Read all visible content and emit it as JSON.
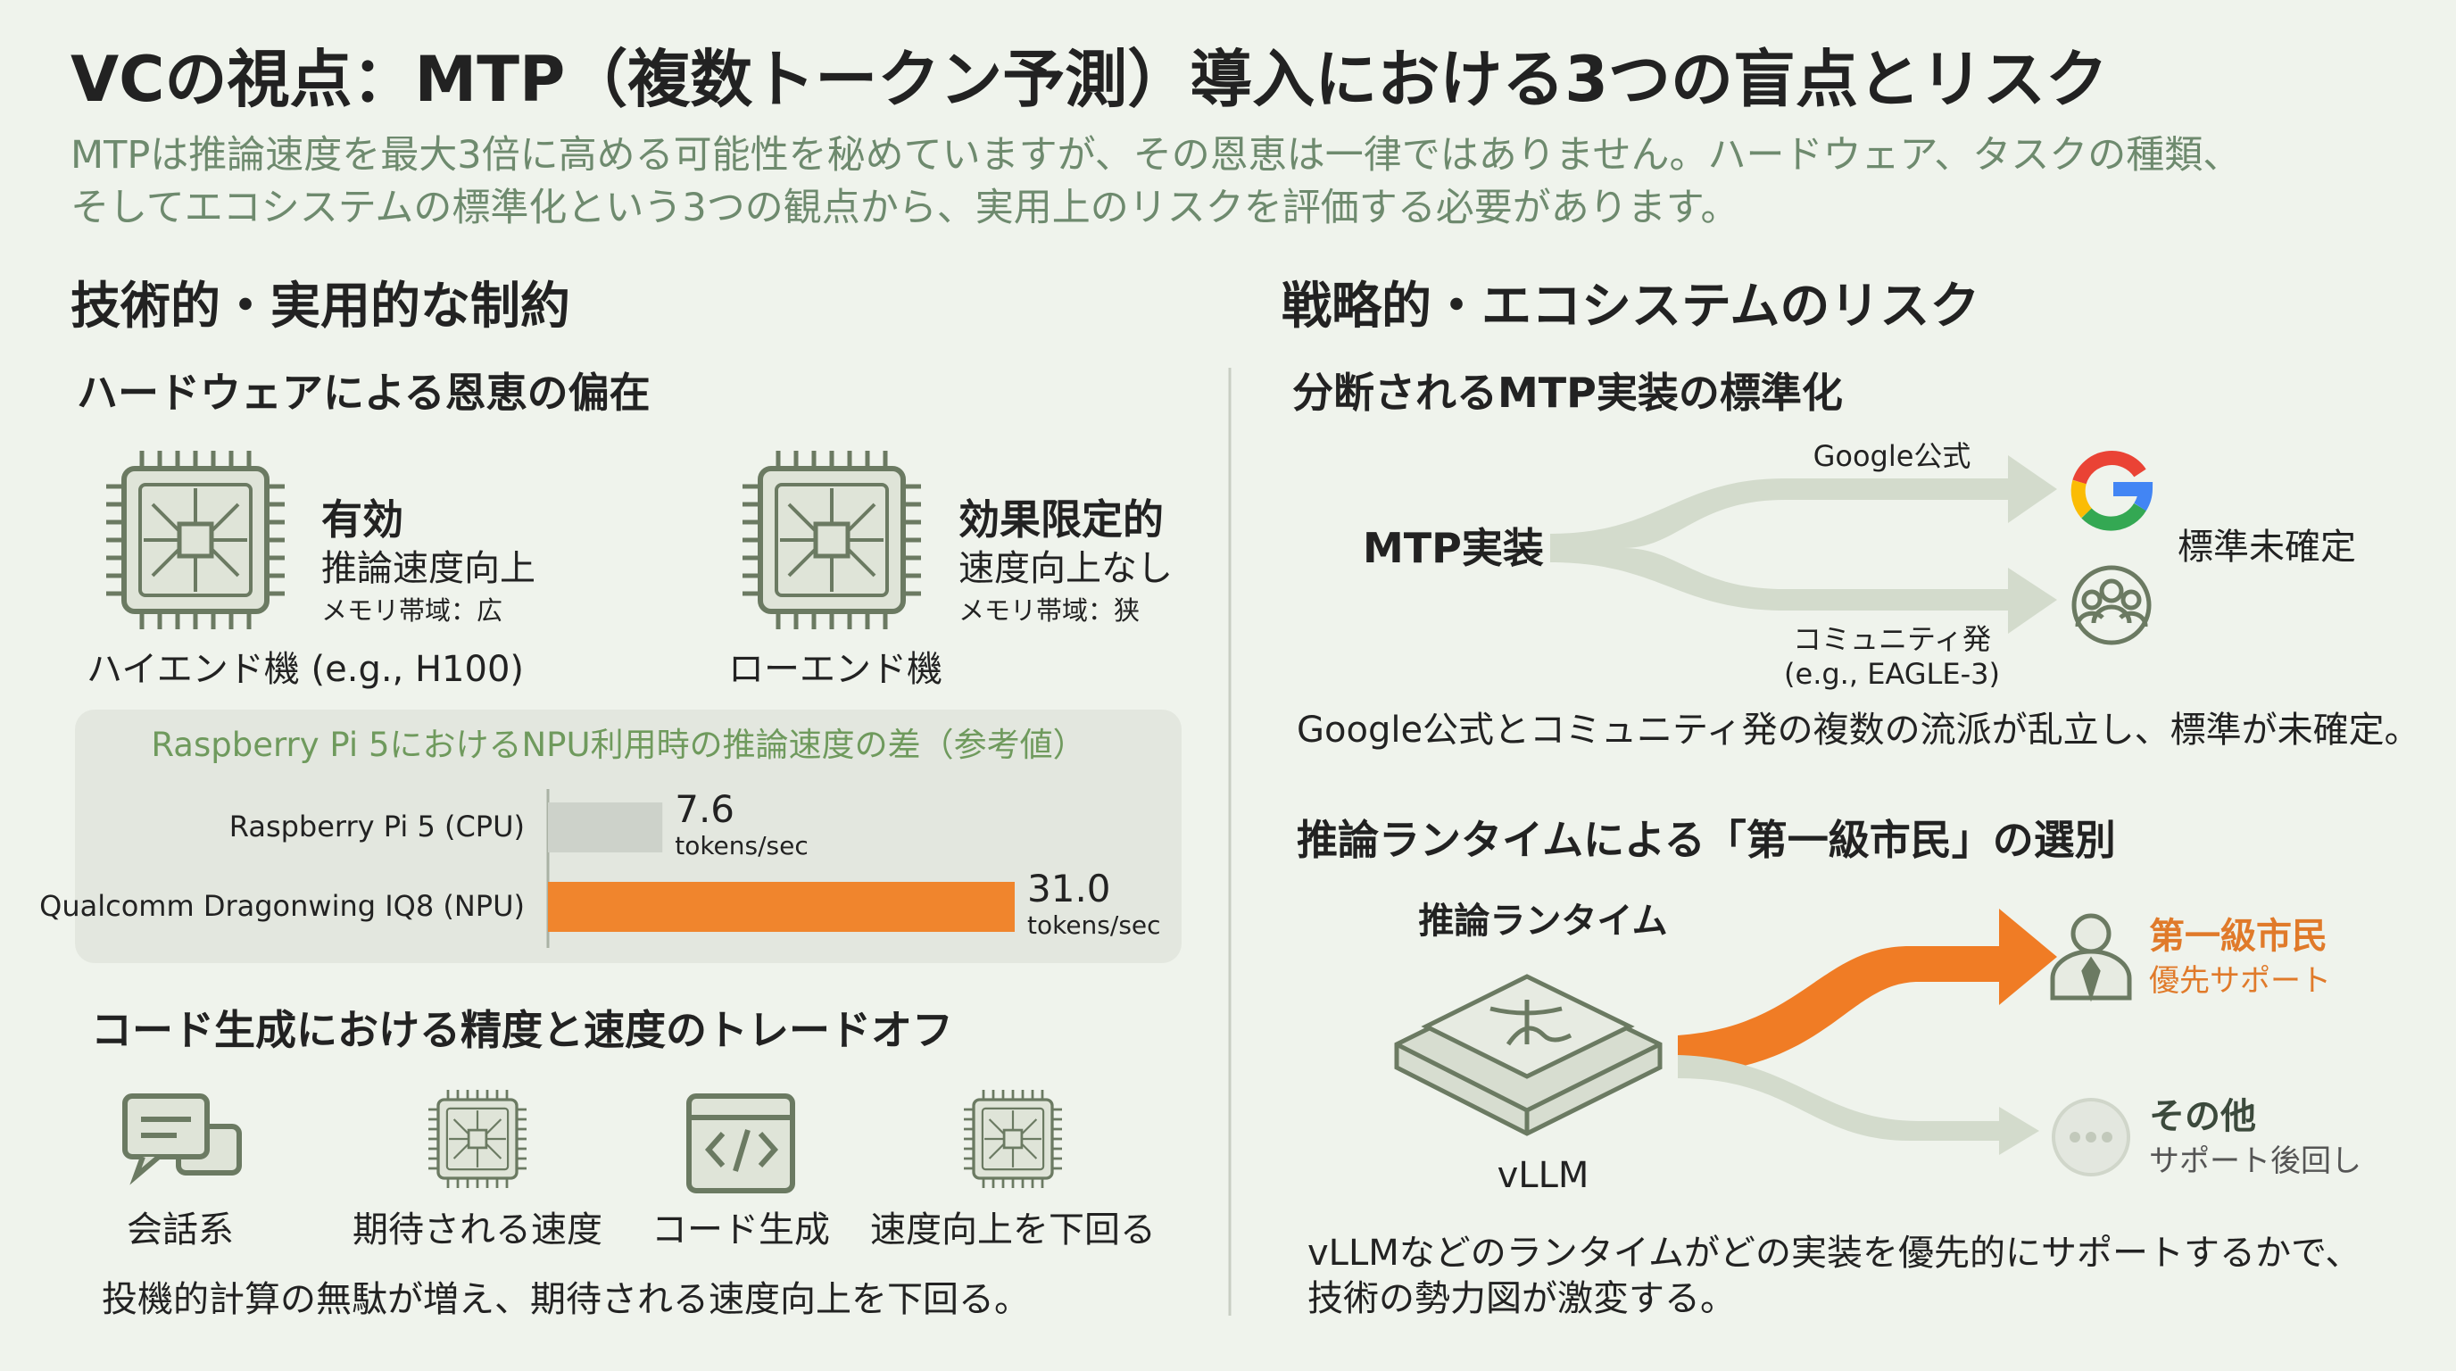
{
  "header": {
    "title": "VCの視点：MTP（複数トークン予測）導入における3つの盲点とリスク",
    "subtitle": [
      "MTPは推論速度を最大3倍に高める可能性を秘めていますが、その恩恵は一律ではありません。ハードウェア、タスクの種類、",
      "そしてエコシステムの標準化という3つの観点から、実用上のリスクを評価する必要があります。"
    ]
  },
  "left": {
    "heading": "技術的・実用的な制約",
    "hardware": {
      "heading": "ハードウェアによる恩恵の偏在",
      "high_end": {
        "status": "有効",
        "line1": "推論速度向上",
        "line2": "メモリ帯域：広",
        "label": "ハイエンド機 (e.g., H100)"
      },
      "low_end": {
        "status": "効果限定的",
        "line1": "速度向上なし",
        "line2": "メモリ帯域：狭",
        "label": "ローエンド機"
      }
    },
    "bar_chart": {
      "title": "Raspberry Pi 5におけるNPU利用時の推論速度の差（参考値）",
      "categories": [
        "Raspberry Pi 5 (CPU)",
        "Qualcomm Dragonwing IQ8 (NPU)"
      ],
      "values": [
        7.6,
        31.0
      ],
      "value_labels": [
        "7.6",
        "31.0"
      ],
      "unit": "tokens/sec",
      "colors": [
        "#cdd2ca",
        "#f0852d"
      ]
    },
    "tradeoff": {
      "heading": "コード生成における精度と速度のトレードオフ",
      "steps": [
        "会話系",
        "期待される速度",
        "コード生成",
        "速度向上を下回る"
      ],
      "caption": "投機的計算の無駄が増え、期待される速度向上を下回る。"
    }
  },
  "right": {
    "heading": "戦略的・エコシステムのリスク",
    "standard": {
      "heading": "分断されるMTP実装の標準化",
      "source": "MTP実装",
      "branch_top": "Google公式",
      "branch_bottom": [
        "コミュニティ発",
        "(e.g., EAGLE-3)"
      ],
      "status": "標準未確定",
      "caption": "Google公式とコミュニティ発の複数の流派が乱立し、標準が未確定。"
    },
    "runtime": {
      "heading": "推論ランタイムによる「第一級市民」の選別",
      "label": "推論ランタイム",
      "name": "vLLM",
      "first": {
        "title": "第一級市民",
        "sub": "優先サポート"
      },
      "other": {
        "title": "その他",
        "sub": "サポート後回し"
      },
      "caption": [
        "vLLMなどのランタイムがどの実装を優先的にサポートするかで、",
        "技術の勢力図が激変する。"
      ]
    }
  }
}
